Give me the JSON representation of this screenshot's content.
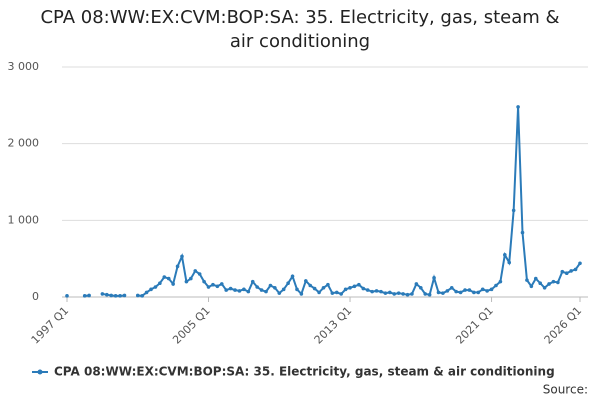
{
  "chart_data": {
    "type": "line",
    "title": "CPA 08:WW:EX:CVM:BOP:SA: 35. Electricity, gas, steam & air conditioning",
    "source_label": "Source:",
    "categories": [
      "1997 Q1",
      null,
      null,
      null,
      null,
      null,
      null,
      null,
      null,
      null,
      null,
      null,
      null,
      null,
      null,
      null,
      null,
      null,
      null,
      null,
      null,
      null,
      null,
      null,
      null,
      null,
      null,
      null,
      null,
      null,
      null,
      null,
      "2005 Q1",
      null,
      null,
      null,
      null,
      null,
      null,
      null,
      null,
      null,
      null,
      null,
      null,
      null,
      null,
      null,
      null,
      null,
      null,
      null,
      null,
      null,
      null,
      null,
      null,
      null,
      null,
      null,
      null,
      null,
      null,
      null,
      "2013 Q1",
      null,
      null,
      null,
      null,
      null,
      null,
      null,
      null,
      null,
      null,
      null,
      null,
      null,
      null,
      null,
      null,
      null,
      null,
      null,
      null,
      null,
      null,
      null,
      null,
      null,
      null,
      null,
      null,
      null,
      null,
      null,
      "2021 Q1",
      null,
      null,
      null,
      null,
      null,
      null,
      null,
      null,
      null,
      null,
      null,
      null,
      null,
      null,
      null,
      null,
      null,
      null,
      null,
      "2026 Q1"
    ],
    "series": [
      {
        "name": "CPA 08:WW:EX:CVM:BOP:SA: 35. Electricity, gas, steam & air conditioning",
        "color": "#2b7bb9",
        "values": [
          15,
          null,
          null,
          null,
          15,
          20,
          null,
          null,
          40,
          30,
          20,
          15,
          15,
          20,
          null,
          null,
          20,
          15,
          60,
          100,
          130,
          180,
          260,
          240,
          170,
          400,
          530,
          200,
          240,
          340,
          300,
          200,
          130,
          160,
          140,
          170,
          90,
          110,
          90,
          80,
          100,
          70,
          200,
          130,
          90,
          70,
          150,
          120,
          50,
          100,
          180,
          270,
          100,
          40,
          210,
          150,
          110,
          60,
          120,
          160,
          50,
          60,
          40,
          100,
          120,
          140,
          160,
          110,
          90,
          70,
          80,
          70,
          50,
          60,
          40,
          50,
          40,
          30,
          40,
          170,
          120,
          40,
          30,
          250,
          60,
          50,
          80,
          120,
          70,
          60,
          90,
          90,
          60,
          60,
          100,
          80,
          100,
          150,
          200,
          550,
          450,
          1130,
          2480,
          840,
          220,
          140,
          240,
          180,
          120,
          170,
          200,
          190,
          330,
          310,
          340,
          360,
          440
        ]
      }
    ],
    "ylim": [
      0,
      3000
    ],
    "yticks": [
      0,
      {
        "value": 1000,
        "label": "1 000"
      },
      {
        "value": 2000,
        "label": "2 000"
      },
      {
        "value": 3000,
        "label": "3 000"
      }
    ],
    "grid": true
  }
}
